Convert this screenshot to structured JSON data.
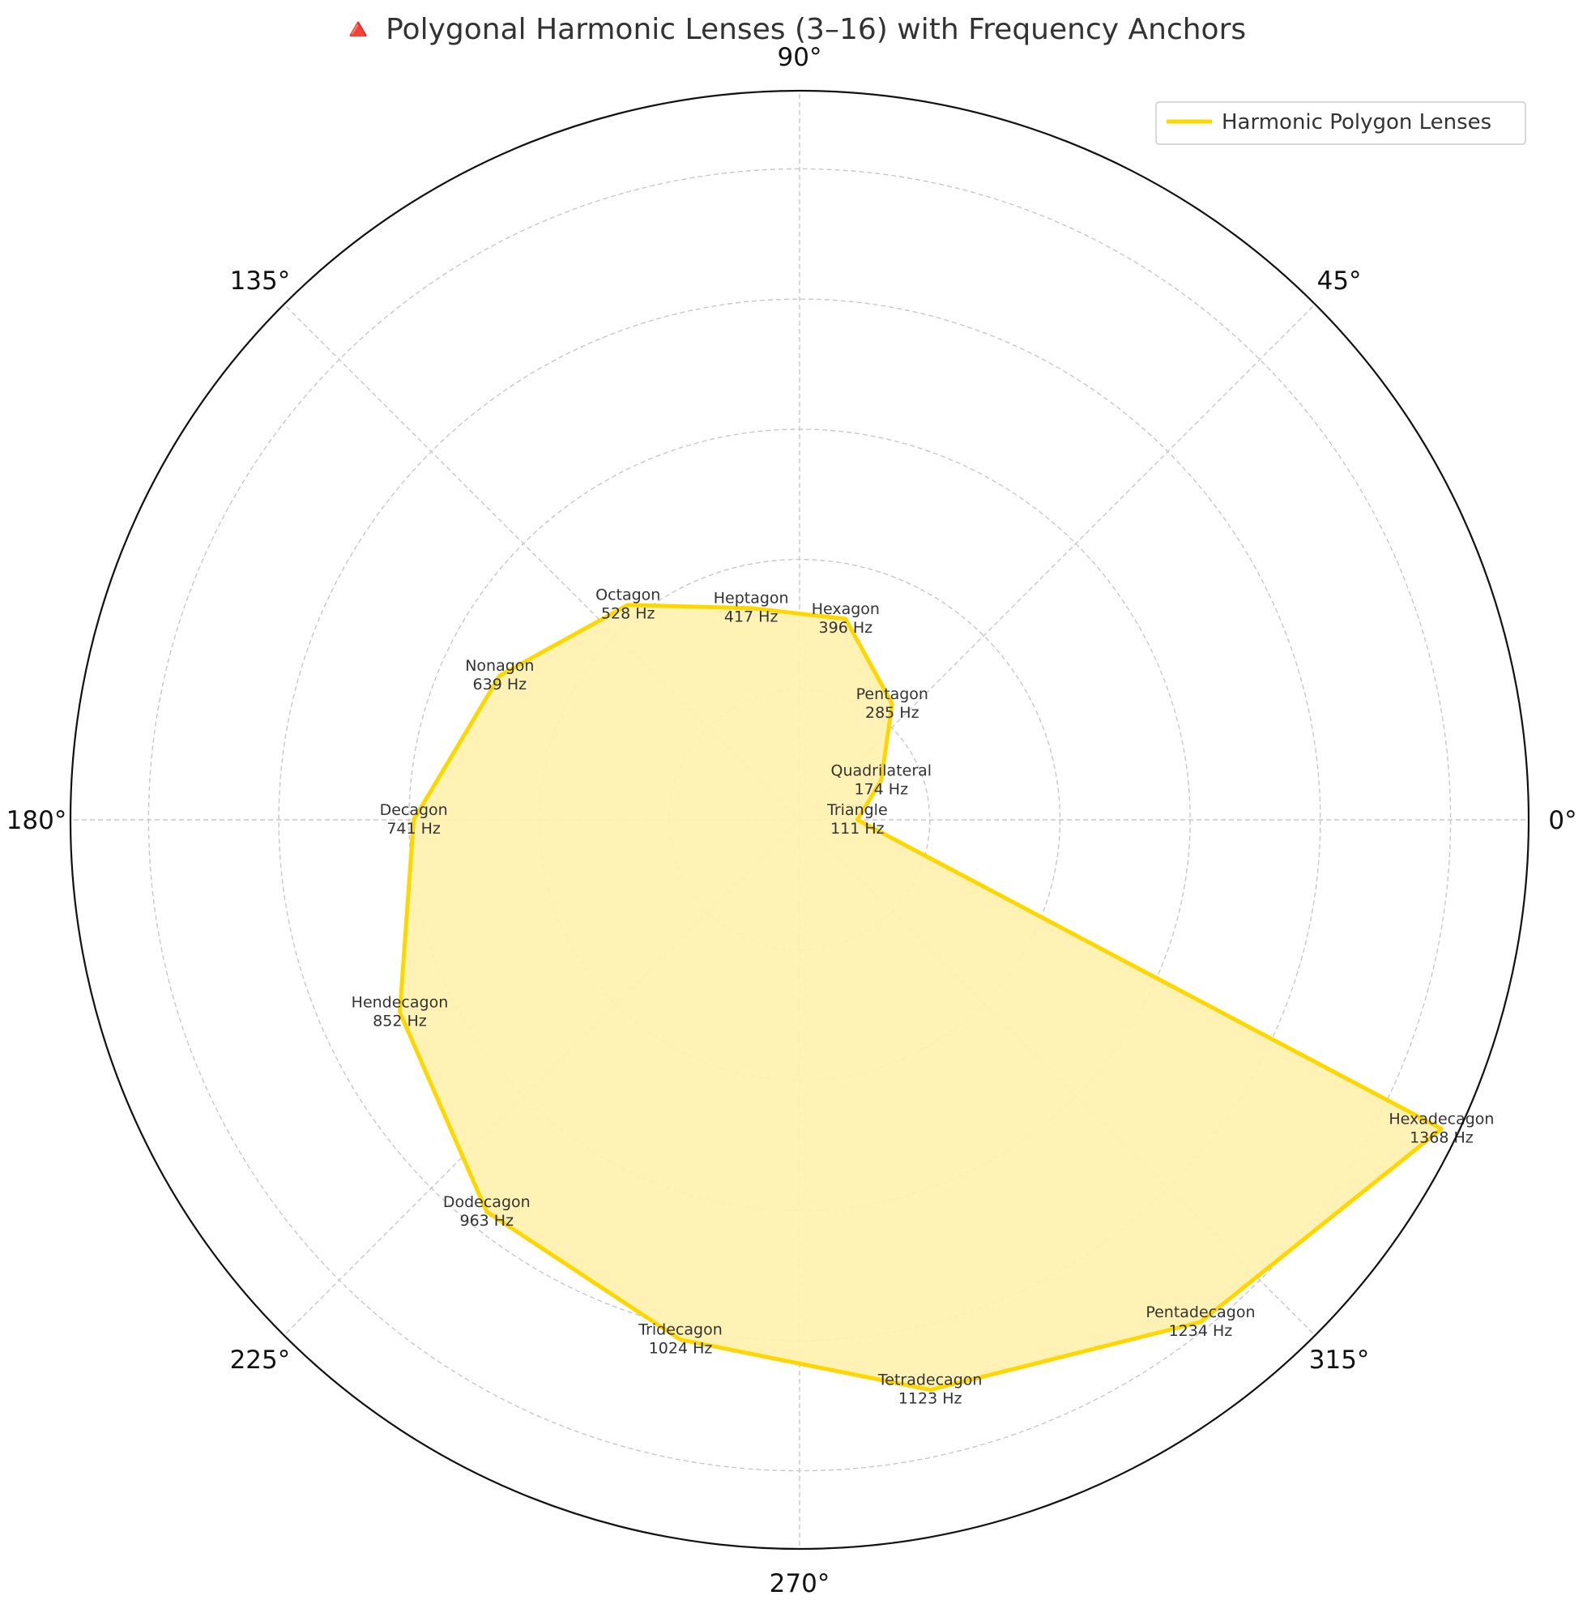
{
  "chart_data": {
    "type": "polar-area",
    "title": "🔺 Polygonal Harmonic Lenses (3–16) with Frequency Anchors",
    "angle_ticks": [
      "0°",
      "45°",
      "90°",
      "135°",
      "180°",
      "225°",
      "270°",
      "315°"
    ],
    "rmax": 1400,
    "radial_gridlines": [
      250,
      500,
      750,
      1000,
      1250
    ],
    "grid": true,
    "legend_position": "top-right",
    "series": [
      {
        "name": "Harmonic Polygon Lenses",
        "color": "#FFD700",
        "fill_color": "#FFF1B0",
        "points": [
          {
            "label": "Triangle",
            "freq_label": "111 Hz",
            "value": 111,
            "angle_deg": 0
          },
          {
            "label": "Quadrilateral",
            "freq_label": "174 Hz",
            "value": 174,
            "angle_deg": 25.7
          },
          {
            "label": "Pentagon",
            "freq_label": "285 Hz",
            "value": 285,
            "angle_deg": 51.4
          },
          {
            "label": "Hexagon",
            "freq_label": "396 Hz",
            "value": 396,
            "angle_deg": 77.1
          },
          {
            "label": "Heptagon",
            "freq_label": "417 Hz",
            "value": 417,
            "angle_deg": 102.9
          },
          {
            "label": "Octagon",
            "freq_label": "528 Hz",
            "value": 528,
            "angle_deg": 128.6
          },
          {
            "label": "Nonagon",
            "freq_label": "639 Hz",
            "value": 639,
            "angle_deg": 154.3
          },
          {
            "label": "Decagon",
            "freq_label": "741 Hz",
            "value": 741,
            "angle_deg": 180
          },
          {
            "label": "Hendecagon",
            "freq_label": "852 Hz",
            "value": 852,
            "angle_deg": 205.7
          },
          {
            "label": "Dodecagon",
            "freq_label": "963 Hz",
            "value": 963,
            "angle_deg": 231.4
          },
          {
            "label": "Tridecagon",
            "freq_label": "1024 Hz",
            "value": 1024,
            "angle_deg": 257.1
          },
          {
            "label": "Tetradecagon",
            "freq_label": "1123 Hz",
            "value": 1123,
            "angle_deg": 282.9
          },
          {
            "label": "Pentadecagon",
            "freq_label": "1234 Hz",
            "value": 1234,
            "angle_deg": 308.6
          },
          {
            "label": "Hexadecagon",
            "freq_label": "1368 Hz",
            "value": 1368,
            "angle_deg": 334.3
          }
        ]
      }
    ]
  }
}
